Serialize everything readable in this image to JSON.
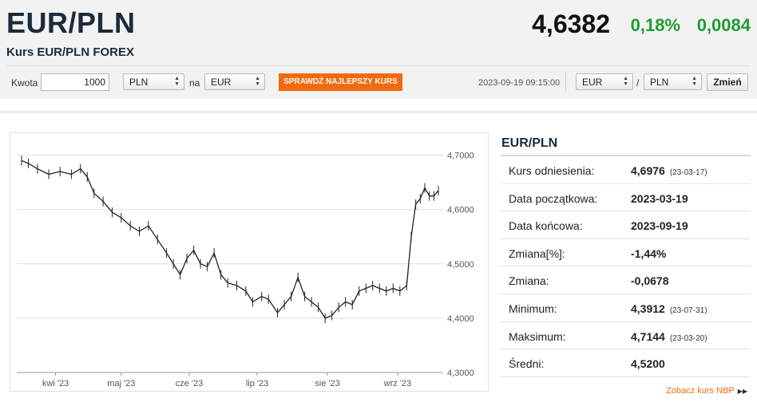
{
  "header": {
    "pair": "EUR/PLN",
    "subtitle": "Kurs EUR/PLN FOREX",
    "price": "4,6382",
    "change_pct": "0,18%",
    "change_abs": "0,0084",
    "colors": {
      "up": "#1e9c33",
      "accent": "#f26a10",
      "title": "#1b2b3a"
    }
  },
  "toolbar": {
    "amount_label": "Kwota",
    "amount_value": "1000",
    "from_currency": "PLN",
    "na_label": "na",
    "to_currency": "EUR",
    "best_rate_button": "SPRAWDŹ NAJLEPSZY KURS",
    "timestamp": "2023-09-19 09:15:00",
    "pair_base": "EUR",
    "slash": "/",
    "pair_quote": "PLN",
    "change_button": "Zmień"
  },
  "stats": {
    "title": "EUR/PLN",
    "rows": [
      {
        "label": "Kurs odniesienia:",
        "value": "4,6976",
        "date": "(23-03-17)"
      },
      {
        "label": "Data początkowa:",
        "value": "2023-03-19",
        "date": ""
      },
      {
        "label": "Data końcowa:",
        "value": "2023-09-19",
        "date": ""
      },
      {
        "label": "Zmiana[%]:",
        "value": "-1,44%",
        "date": ""
      },
      {
        "label": "Zmiana:",
        "value": "-0,0678",
        "date": ""
      },
      {
        "label": "Minimum:",
        "value": "4,3912",
        "date": "(23-07-31)"
      },
      {
        "label": "Maksimum:",
        "value": "4,7144",
        "date": "(23-03-20)"
      },
      {
        "label": "Średni:",
        "value": "4,5200",
        "date": ""
      }
    ],
    "nbp_link": "Zobacz kurs NBP"
  },
  "chart_data": {
    "type": "line",
    "ylim": [
      4.3,
      4.72
    ],
    "yticks": [
      {
        "value": 4.7,
        "label": "4,7000"
      },
      {
        "value": 4.6,
        "label": "4,6000"
      },
      {
        "value": 4.5,
        "label": "4,5000"
      },
      {
        "value": 4.4,
        "label": "4,4000"
      },
      {
        "value": 4.3,
        "label": "4,3000"
      }
    ],
    "xlim": [
      "2023-03-19",
      "2023-09-19"
    ],
    "xticks": [
      {
        "x": "2023-04-03",
        "label": "kwi '23"
      },
      {
        "x": "2023-05-02",
        "label": "maj '23"
      },
      {
        "x": "2023-06-01",
        "label": "cze '23"
      },
      {
        "x": "2023-07-01",
        "label": "lip '23"
      },
      {
        "x": "2023-08-01",
        "label": "sie '23"
      },
      {
        "x": "2023-09-01",
        "label": "wrz '23"
      }
    ],
    "grid": true,
    "series": [
      {
        "color": "#222222",
        "points": [
          [
            "2023-03-19",
            4.69
          ],
          [
            "2023-03-22",
            4.685
          ],
          [
            "2023-03-26",
            4.675
          ],
          [
            "2023-03-31",
            4.665
          ],
          [
            "2023-04-05",
            4.67
          ],
          [
            "2023-04-10",
            4.665
          ],
          [
            "2023-04-14",
            4.675
          ],
          [
            "2023-04-17",
            4.66
          ],
          [
            "2023-04-20",
            4.63
          ],
          [
            "2023-04-24",
            4.615
          ],
          [
            "2023-04-28",
            4.595
          ],
          [
            "2023-05-02",
            4.585
          ],
          [
            "2023-05-06",
            4.57
          ],
          [
            "2023-05-10",
            4.56
          ],
          [
            "2023-05-14",
            4.57
          ],
          [
            "2023-05-18",
            4.545
          ],
          [
            "2023-05-22",
            4.52
          ],
          [
            "2023-05-25",
            4.5
          ],
          [
            "2023-05-28",
            4.48
          ],
          [
            "2023-05-31",
            4.51
          ],
          [
            "2023-06-03",
            4.525
          ],
          [
            "2023-06-06",
            4.5
          ],
          [
            "2023-06-09",
            4.495
          ],
          [
            "2023-06-12",
            4.52
          ],
          [
            "2023-06-15",
            4.48
          ],
          [
            "2023-06-18",
            4.465
          ],
          [
            "2023-06-22",
            4.46
          ],
          [
            "2023-06-26",
            4.45
          ],
          [
            "2023-06-29",
            4.43
          ],
          [
            "2023-07-03",
            4.44
          ],
          [
            "2023-07-06",
            4.435
          ],
          [
            "2023-07-10",
            4.41
          ],
          [
            "2023-07-13",
            4.425
          ],
          [
            "2023-07-16",
            4.44
          ],
          [
            "2023-07-19",
            4.475
          ],
          [
            "2023-07-22",
            4.44
          ],
          [
            "2023-07-25",
            4.43
          ],
          [
            "2023-07-28",
            4.42
          ],
          [
            "2023-07-31",
            4.4
          ],
          [
            "2023-08-03",
            4.405
          ],
          [
            "2023-08-06",
            4.42
          ],
          [
            "2023-08-09",
            4.43
          ],
          [
            "2023-08-12",
            4.425
          ],
          [
            "2023-08-15",
            4.45
          ],
          [
            "2023-08-18",
            4.455
          ],
          [
            "2023-08-21",
            4.46
          ],
          [
            "2023-08-24",
            4.455
          ],
          [
            "2023-08-27",
            4.45
          ],
          [
            "2023-08-30",
            4.455
          ],
          [
            "2023-09-02",
            4.45
          ],
          [
            "2023-09-05",
            4.46
          ],
          [
            "2023-09-07",
            4.55
          ],
          [
            "2023-09-09",
            4.61
          ],
          [
            "2023-09-11",
            4.62
          ],
          [
            "2023-09-13",
            4.64
          ],
          [
            "2023-09-15",
            4.625
          ],
          [
            "2023-09-17",
            4.625
          ],
          [
            "2023-09-19",
            4.635
          ]
        ]
      }
    ]
  }
}
